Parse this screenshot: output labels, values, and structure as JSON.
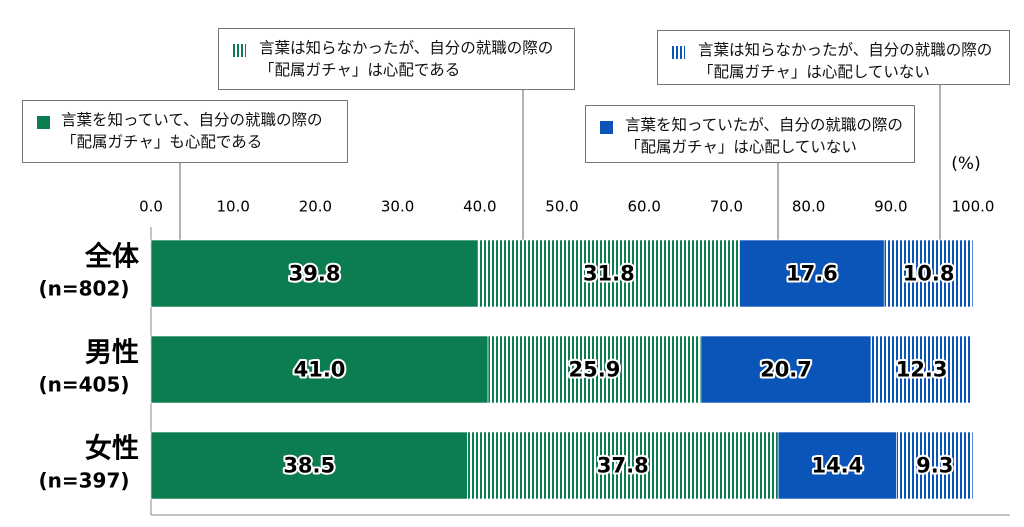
{
  "chart_data": {
    "type": "stacked-bar-horizontal",
    "categories": [
      "全体",
      "男性",
      "女性"
    ],
    "category_notes": [
      "(n=802)",
      "(n=405)",
      "(n=397)"
    ],
    "x_unit": "(%)",
    "xlim": [
      0,
      100
    ],
    "xticks": [
      {
        "value": 0,
        "label": "0.0"
      },
      {
        "value": 10,
        "label": "10.0"
      },
      {
        "value": 20,
        "label": "20.0"
      },
      {
        "value": 30,
        "label": "30.0"
      },
      {
        "value": 40,
        "label": "40.0"
      },
      {
        "value": 50,
        "label": "50.0"
      },
      {
        "value": 60,
        "label": "60.0"
      },
      {
        "value": 70,
        "label": "70.0"
      },
      {
        "value": 80,
        "label": "80.0"
      },
      {
        "value": 90,
        "label": "90.0"
      },
      {
        "value": 100,
        "label": "100.0"
      }
    ],
    "series": [
      {
        "name": "言葉を知っていて、自分の就職の際の「配属ガチャ」も心配である",
        "color": "#0b7d50",
        "pattern": "solid",
        "values": [
          39.8,
          41,
          38.5
        ],
        "value_labels": [
          "39.8",
          "41.0",
          "38.5"
        ]
      },
      {
        "name": "言葉は知らなかったが、自分の就職の際の「配属ガチャ」は心配である",
        "color": "#0b7d50",
        "pattern": "stripe",
        "values": [
          31.8,
          25.9,
          37.8
        ],
        "value_labels": [
          "31.8",
          "25.9",
          "37.8"
        ]
      },
      {
        "name": "言葉を知っていたが、自分の就職の際の「配属ガチャ」は心配していない",
        "color": "#0b55b9",
        "pattern": "solid",
        "values": [
          17.6,
          20.7,
          14.4
        ],
        "value_labels": [
          "17.6",
          "20.7",
          "14.4"
        ]
      },
      {
        "name": "言葉は知らなかったが、自分の就職の際の「配属ガチャ」は心配していない",
        "color": "#0b55b9",
        "pattern": "stripe",
        "values": [
          10.8,
          12.3,
          9.3
        ],
        "value_labels": [
          "10.8",
          "12.3",
          "9.3"
        ]
      }
    ]
  }
}
